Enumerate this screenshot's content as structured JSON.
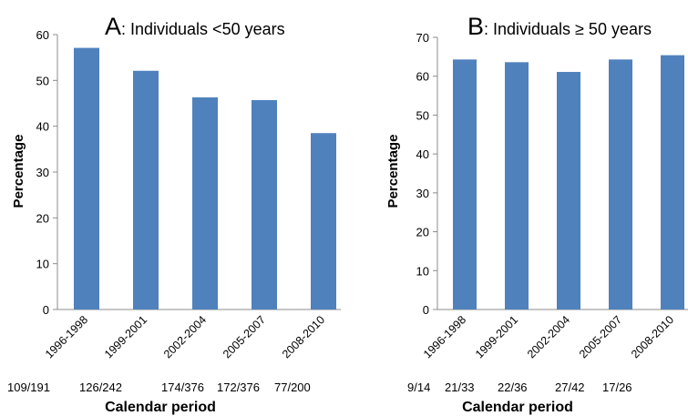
{
  "colors": {
    "bar": "#4f81bd",
    "axis": "#8c8c8c",
    "text": "#000000",
    "background": "#ffffff"
  },
  "chart_data": [
    {
      "type": "bar",
      "panel_letter": "A",
      "title": ": Individuals <50 years",
      "xlabel": "Calendar period",
      "ylabel": "Percentage",
      "ylim": [
        0,
        60
      ],
      "yticks": [
        "0",
        "10",
        "20",
        "30",
        "40",
        "50",
        "60"
      ],
      "grid": false,
      "categories": [
        "1996-1998",
        "1999-2001",
        "2002-2004",
        "2005-2007",
        "2008-2010"
      ],
      "values": [
        57.1,
        52.1,
        46.3,
        45.7,
        38.5
      ],
      "counts": [
        "109/191",
        "126/242",
        "174/376",
        "172/376",
        "77/200"
      ]
    },
    {
      "type": "bar",
      "panel_letter": "B",
      "title": ": Individuals ≥ 50 years",
      "xlabel": "Calendar period",
      "ylabel": "Percentage",
      "ylim": [
        0,
        70
      ],
      "yticks": [
        "0",
        "10",
        "20",
        "30",
        "40",
        "50",
        "60",
        "70"
      ],
      "grid": false,
      "categories": [
        "1996-1998",
        "1999-2001",
        "2002-2004",
        "2005-2007",
        "2008-2010"
      ],
      "values": [
        64.3,
        63.6,
        61.1,
        64.3,
        65.4
      ],
      "counts": [
        "9/14",
        "21/33",
        "22/36",
        "27/42",
        "17/26"
      ]
    }
  ]
}
